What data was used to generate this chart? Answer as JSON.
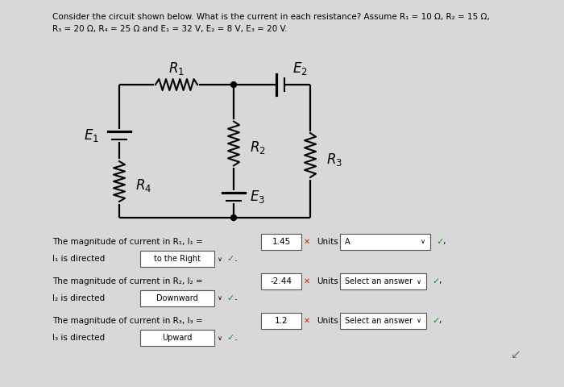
{
  "bg_color": "#d8d8d8",
  "title_line1": "Consider the circuit shown below. What is the current in each resistance? Assume R₁ = 10 Ω, R₂ = 15 Ω,",
  "title_line2": "R₃ = 20 Ω, R₄ = 25 Ω and E₁ = 32 V, E₂ = 8 V, E₃ = 20 V.",
  "val1": "1.45",
  "val2": "-2.44",
  "val3": "1.2",
  "dir1": "to the Right",
  "dir2": "Downward",
  "dir3": "Upward",
  "units1": "A",
  "units2": "Select an answer",
  "units3": "Select an answer"
}
